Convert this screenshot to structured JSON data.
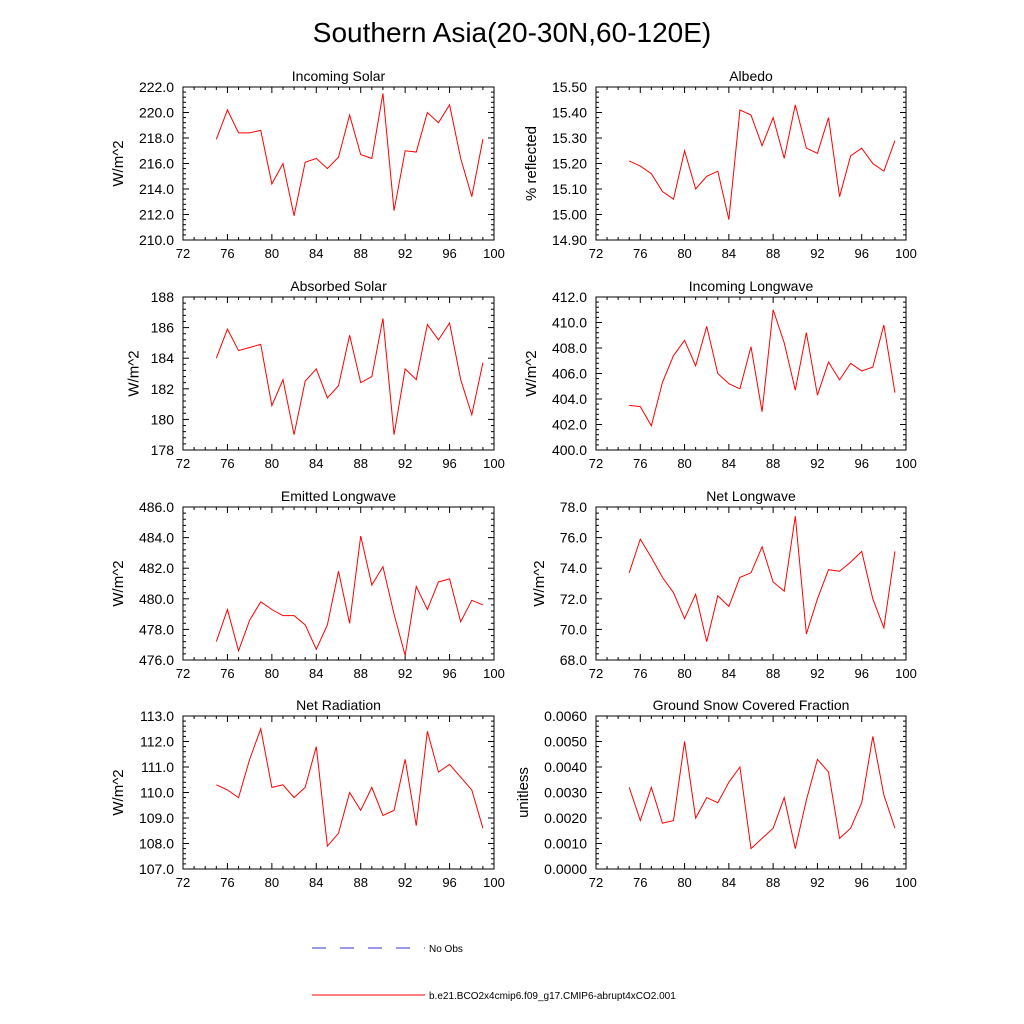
{
  "figure_title": "Southern Asia(20-30N,60-120E)",
  "legend": {
    "no_obs": "No Obs",
    "model": "b.e21.BCO2x4cmip6.f09_g17.CMIP6-abrupt4xCO2.001"
  },
  "colors": {
    "model_line": "#ff0000",
    "no_obs_line": "#3333cc",
    "axis": "#000000"
  },
  "chart_data": [
    {
      "type": "line",
      "title": "Incoming Solar",
      "ylabel": "W/m^2",
      "xlim": [
        72,
        100
      ],
      "xticks": [
        "72",
        "76",
        "80",
        "84",
        "88",
        "92",
        "96",
        "100"
      ],
      "ylim": [
        210,
        222
      ],
      "yticks": [
        "210.0",
        "212.0",
        "214.0",
        "216.0",
        "218.0",
        "220.0",
        "222.0"
      ],
      "x": [
        75,
        76,
        77,
        78,
        79,
        80,
        81,
        82,
        83,
        84,
        85,
        86,
        87,
        88,
        89,
        90,
        91,
        92,
        93,
        94,
        95,
        96,
        97,
        98,
        99
      ],
      "series": [
        {
          "values": [
            217.9,
            220.2,
            218.4,
            218.4,
            218.6,
            214.4,
            216.0,
            211.9,
            216.1,
            216.4,
            215.6,
            216.5,
            219.8,
            216.7,
            216.4,
            221.5,
            212.3,
            217.0,
            216.9,
            220.0,
            219.2,
            220.6,
            216.4,
            213.4,
            217.9
          ]
        }
      ]
    },
    {
      "type": "line",
      "title": "Albedo",
      "ylabel": "% reflected",
      "xlim": [
        72,
        100
      ],
      "xticks": [
        "72",
        "76",
        "80",
        "84",
        "88",
        "92",
        "96",
        "100"
      ],
      "ylim": [
        14.9,
        15.5
      ],
      "yticks": [
        "14.90",
        "15.00",
        "15.10",
        "15.20",
        "15.30",
        "15.40",
        "15.50"
      ],
      "x": [
        75,
        76,
        77,
        78,
        79,
        80,
        81,
        82,
        83,
        84,
        85,
        86,
        87,
        88,
        89,
        90,
        91,
        92,
        93,
        94,
        95,
        96,
        97,
        98,
        99
      ],
      "series": [
        {
          "values": [
            15.21,
            15.19,
            15.16,
            15.09,
            15.06,
            15.25,
            15.1,
            15.15,
            15.17,
            14.98,
            15.41,
            15.39,
            15.27,
            15.38,
            15.22,
            15.43,
            15.26,
            15.24,
            15.38,
            15.07,
            15.23,
            15.26,
            15.2,
            15.17,
            15.29
          ]
        }
      ]
    },
    {
      "type": "line",
      "title": "Absorbed Solar",
      "ylabel": "W/m^2",
      "xlim": [
        72,
        100
      ],
      "xticks": [
        "72",
        "76",
        "80",
        "84",
        "88",
        "92",
        "96",
        "100"
      ],
      "ylim": [
        178,
        188
      ],
      "yticks": [
        "178",
        "180",
        "182",
        "184",
        "186",
        "188"
      ],
      "x": [
        75,
        76,
        77,
        78,
        79,
        80,
        81,
        82,
        83,
        84,
        85,
        86,
        87,
        88,
        89,
        90,
        91,
        92,
        93,
        94,
        95,
        96,
        97,
        98,
        99
      ],
      "series": [
        {
          "values": [
            184.0,
            185.9,
            184.5,
            184.7,
            184.9,
            180.9,
            182.6,
            179.0,
            182.5,
            183.3,
            181.4,
            182.2,
            185.5,
            182.4,
            182.8,
            186.6,
            179.0,
            183.3,
            182.6,
            186.2,
            185.2,
            186.3,
            182.6,
            180.3,
            183.7
          ]
        }
      ]
    },
    {
      "type": "line",
      "title": "Incoming Longwave",
      "ylabel": "W/m^2",
      "xlim": [
        72,
        100
      ],
      "xticks": [
        "72",
        "76",
        "80",
        "84",
        "88",
        "92",
        "96",
        "100"
      ],
      "ylim": [
        400,
        412
      ],
      "yticks": [
        "400.0",
        "402.0",
        "404.0",
        "406.0",
        "408.0",
        "410.0",
        "412.0"
      ],
      "x": [
        75,
        76,
        77,
        78,
        79,
        80,
        81,
        82,
        83,
        84,
        85,
        86,
        87,
        88,
        89,
        90,
        91,
        92,
        93,
        94,
        95,
        96,
        97,
        98,
        99
      ],
      "series": [
        {
          "values": [
            403.5,
            403.4,
            401.9,
            405.3,
            407.4,
            408.6,
            406.6,
            409.7,
            406.0,
            405.2,
            404.8,
            408.1,
            403.0,
            411.0,
            408.4,
            404.7,
            409.2,
            404.3,
            406.9,
            405.5,
            406.8,
            406.2,
            406.5,
            409.8,
            404.5
          ]
        }
      ]
    },
    {
      "type": "line",
      "title": "Emitted Longwave",
      "ylabel": "W/m^2",
      "xlim": [
        72,
        100
      ],
      "xticks": [
        "72",
        "76",
        "80",
        "84",
        "88",
        "92",
        "96",
        "100"
      ],
      "ylim": [
        476,
        486
      ],
      "yticks": [
        "476.0",
        "478.0",
        "480.0",
        "482.0",
        "484.0",
        "486.0"
      ],
      "x": [
        75,
        76,
        77,
        78,
        79,
        80,
        81,
        82,
        83,
        84,
        85,
        86,
        87,
        88,
        89,
        90,
        91,
        92,
        93,
        94,
        95,
        96,
        97,
        98,
        99
      ],
      "series": [
        {
          "values": [
            477.2,
            479.3,
            476.6,
            478.6,
            479.8,
            479.3,
            478.9,
            478.9,
            478.3,
            476.7,
            478.3,
            481.8,
            478.4,
            484.1,
            480.9,
            482.1,
            479.0,
            476.3,
            480.8,
            479.3,
            481.1,
            481.3,
            478.5,
            479.9,
            479.6
          ]
        }
      ]
    },
    {
      "type": "line",
      "title": "Net Longwave",
      "ylabel": "W/m^2",
      "xlim": [
        72,
        100
      ],
      "xticks": [
        "72",
        "76",
        "80",
        "84",
        "88",
        "92",
        "96",
        "100"
      ],
      "ylim": [
        68,
        78
      ],
      "yticks": [
        "68.0",
        "70.0",
        "72.0",
        "74.0",
        "76.0",
        "78.0"
      ],
      "x": [
        75,
        76,
        77,
        78,
        79,
        80,
        81,
        82,
        83,
        84,
        85,
        86,
        87,
        88,
        89,
        90,
        91,
        92,
        93,
        94,
        95,
        96,
        97,
        98,
        99
      ],
      "series": [
        {
          "values": [
            73.7,
            75.9,
            74.7,
            73.4,
            72.4,
            70.7,
            72.3,
            69.2,
            72.2,
            71.5,
            73.4,
            73.7,
            75.4,
            73.1,
            72.5,
            77.4,
            69.7,
            72.0,
            73.9,
            73.8,
            74.4,
            75.1,
            72.0,
            70.1,
            75.1
          ]
        }
      ]
    },
    {
      "type": "line",
      "title": "Net Radiation",
      "ylabel": "W/m^2",
      "xlim": [
        72,
        100
      ],
      "xticks": [
        "72",
        "76",
        "80",
        "84",
        "88",
        "92",
        "96",
        "100"
      ],
      "ylim": [
        107,
        113
      ],
      "yticks": [
        "107.0",
        "108.0",
        "109.0",
        "110.0",
        "111.0",
        "112.0",
        "113.0"
      ],
      "x": [
        75,
        76,
        77,
        78,
        79,
        80,
        81,
        82,
        83,
        84,
        85,
        86,
        87,
        88,
        89,
        90,
        91,
        92,
        93,
        94,
        95,
        96,
        97,
        98,
        99
      ],
      "series": [
        {
          "values": [
            110.3,
            110.1,
            109.8,
            111.3,
            112.5,
            110.2,
            110.3,
            109.8,
            110.2,
            111.8,
            107.9,
            108.4,
            110.0,
            109.3,
            110.2,
            109.1,
            109.3,
            111.3,
            108.7,
            112.4,
            110.8,
            111.1,
            110.6,
            110.1,
            108.6
          ]
        }
      ]
    },
    {
      "type": "line",
      "title": "Ground Snow Covered Fraction",
      "ylabel": "unitless",
      "xlim": [
        72,
        100
      ],
      "xticks": [
        "72",
        "76",
        "80",
        "84",
        "88",
        "92",
        "96",
        "100"
      ],
      "ylim": [
        0,
        0.006
      ],
      "yticks": [
        "0.0000",
        "0.0010",
        "0.0020",
        "0.0030",
        "0.0040",
        "0.0050",
        "0.0060"
      ],
      "x": [
        75,
        76,
        77,
        78,
        79,
        80,
        81,
        82,
        83,
        84,
        85,
        86,
        87,
        88,
        89,
        90,
        91,
        92,
        93,
        94,
        95,
        96,
        97,
        98,
        99
      ],
      "series": [
        {
          "values": [
            0.0032,
            0.0019,
            0.0032,
            0.0018,
            0.0019,
            0.005,
            0.002,
            0.0028,
            0.0026,
            0.0034,
            0.004,
            0.0008,
            0.0012,
            0.0016,
            0.0028,
            0.0008,
            0.0027,
            0.0043,
            0.0038,
            0.0012,
            0.0016,
            0.0026,
            0.0052,
            0.0029,
            0.0016
          ]
        }
      ]
    }
  ]
}
